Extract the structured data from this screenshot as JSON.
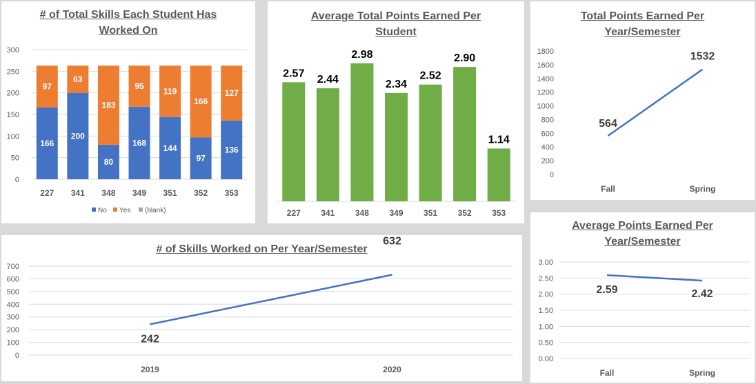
{
  "chart_data": [
    {
      "type": "bar",
      "stacked": true,
      "title": "# of Total Skills Each Student Has Worked On",
      "categories": [
        "227",
        "341",
        "348",
        "349",
        "351",
        "352",
        "353"
      ],
      "series": [
        {
          "name": "No",
          "values": [
            166,
            200,
            80,
            168,
            144,
            97,
            136
          ],
          "color": "#4472c4"
        },
        {
          "name": "Yes",
          "values": [
            97,
            63,
            183,
            95,
            119,
            166,
            127
          ],
          "color": "#ed7d31"
        },
        {
          "name": "(blank)",
          "values": [
            0,
            0,
            0,
            0,
            0,
            0,
            0
          ],
          "color": "#a5a5a5"
        }
      ],
      "ylim": [
        0,
        300
      ],
      "yticks": [
        "0",
        "50",
        "100",
        "150",
        "200",
        "250",
        "300"
      ],
      "grid": true,
      "legend": "bottom"
    },
    {
      "type": "bar",
      "title": "Average Total Points Earned Per Student",
      "categories": [
        "227",
        "341",
        "348",
        "349",
        "351",
        "352",
        "353"
      ],
      "values": [
        2.57,
        2.44,
        2.98,
        2.34,
        2.52,
        2.9,
        1.14
      ],
      "labels": [
        "2.57",
        "2.44",
        "2.98",
        "2.34",
        "2.52",
        "2.90",
        "1.14"
      ],
      "ylim": [
        0,
        3.2
      ],
      "color": "#70ad47",
      "grid": false
    },
    {
      "type": "line",
      "title": "Total Points Earned Per Year/Semester",
      "categories": [
        "Fall",
        "Spring"
      ],
      "values": [
        564,
        1532
      ],
      "labels": [
        "564",
        "1532"
      ],
      "ylim": [
        0,
        1800
      ],
      "yticks": [
        "0",
        "200",
        "400",
        "600",
        "800",
        "1000",
        "1200",
        "1400",
        "1600",
        "1800"
      ],
      "color": "#4472c4",
      "grid": false
    },
    {
      "type": "line",
      "title": "# of Skills Worked on Per Year/Semester",
      "categories": [
        "2019",
        "2020"
      ],
      "values": [
        242,
        632
      ],
      "labels": [
        "242",
        "632"
      ],
      "ylim": [
        0,
        700
      ],
      "yticks": [
        "0",
        "100",
        "200",
        "300",
        "400",
        "500",
        "600",
        "700"
      ],
      "color": "#4472c4",
      "grid": true
    },
    {
      "type": "line",
      "title": "Average Points Earned Per Year/Semester",
      "categories": [
        "Fall",
        "Spring"
      ],
      "values": [
        2.59,
        2.42
      ],
      "labels": [
        "2.59",
        "2.42"
      ],
      "ylim": [
        0,
        3
      ],
      "yticks": [
        "0.00",
        "0.50",
        "1.00",
        "1.50",
        "2.00",
        "2.50",
        "3.00"
      ],
      "color": "#4472c4",
      "grid": true
    }
  ]
}
